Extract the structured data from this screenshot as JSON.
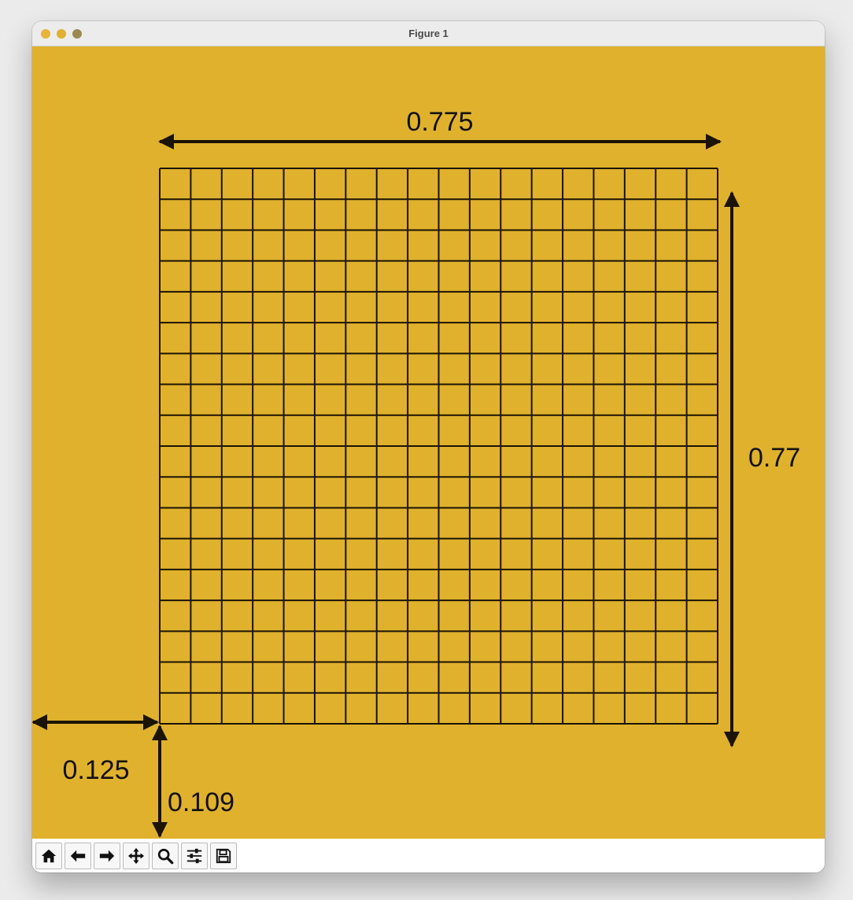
{
  "window": {
    "title": "Figure 1",
    "traffic_colors": {
      "red": "#e8b33a",
      "yellow": "#e0b030",
      "green": "#9a8a52"
    }
  },
  "figure": {
    "background": "#e0b12d",
    "grid_color": "#1b1405",
    "grid_rows": 18,
    "grid_cols": 18,
    "dimension_labels": {
      "width": "0.775",
      "height": "0.77",
      "left": "0.125",
      "bottom": "0.109"
    }
  },
  "toolbar": {
    "buttons": [
      {
        "name": "home",
        "icon": "home-icon"
      },
      {
        "name": "back",
        "icon": "arrow-left-icon"
      },
      {
        "name": "forward",
        "icon": "arrow-right-icon"
      },
      {
        "name": "pan",
        "icon": "move-icon"
      },
      {
        "name": "zoom",
        "icon": "magnifier-icon"
      },
      {
        "name": "configure-subplots",
        "icon": "sliders-icon"
      },
      {
        "name": "save",
        "icon": "floppy-disk-icon"
      }
    ]
  }
}
